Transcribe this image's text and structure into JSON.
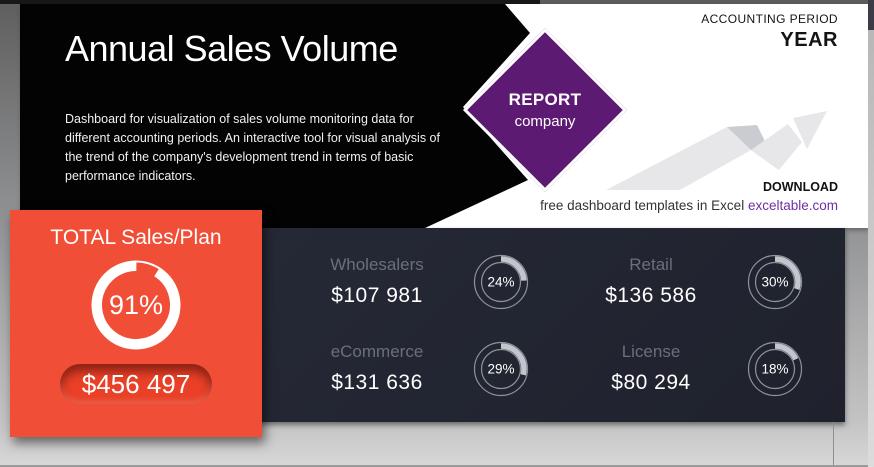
{
  "header": {
    "title": "Annual Sales Volume",
    "description": "Dashboard for visualization of sales volume monitoring data for different accounting periods. An interactive tool for visual analysis of the trend of the company's development trend in terms of basic performance indicators.",
    "accounting_period": {
      "label": "ACCOUNTING PERIOD",
      "value": "YEAR"
    },
    "report_badge": {
      "title": "REPORT",
      "subtitle": "company"
    },
    "download": {
      "label": "DOWNLOAD",
      "tagline": "free dashboard templates in Excel ",
      "link": "exceltable.com"
    }
  },
  "total_card": {
    "title": "TOTAL Sales/Plan",
    "percent": 91,
    "percent_label": "91%",
    "amount": "$456 497"
  },
  "metrics": [
    {
      "label": "Wholesalers",
      "amount": "$107 981",
      "percent": 24,
      "percent_label": "24%"
    },
    {
      "label": "Retail",
      "amount": "$136 586",
      "percent": 30,
      "percent_label": "30%"
    },
    {
      "label": "eCommerce",
      "amount": "$131 636",
      "percent": 29,
      "percent_label": "29%"
    },
    {
      "label": "License",
      "amount": "$80 294",
      "percent": 18,
      "percent_label": "18%"
    }
  ],
  "chart_data": {
    "type": "pie",
    "title": "TOTAL Sales/Plan",
    "categories": [
      "Wholesalers",
      "Retail",
      "eCommerce",
      "License"
    ],
    "values": [
      107981,
      136586,
      131636,
      80294
    ],
    "percents": [
      24,
      30,
      29,
      18
    ],
    "total_amount": 456497,
    "total_percent_of_plan": 91
  },
  "colors": {
    "accent_orange": "#F04E37",
    "panel_dark": "#222531",
    "badge_purple": "#5C1A72",
    "link_purple": "#7030A0",
    "gauge_arc": "#C3C7CD",
    "label_gray": "#6A6F7B"
  }
}
